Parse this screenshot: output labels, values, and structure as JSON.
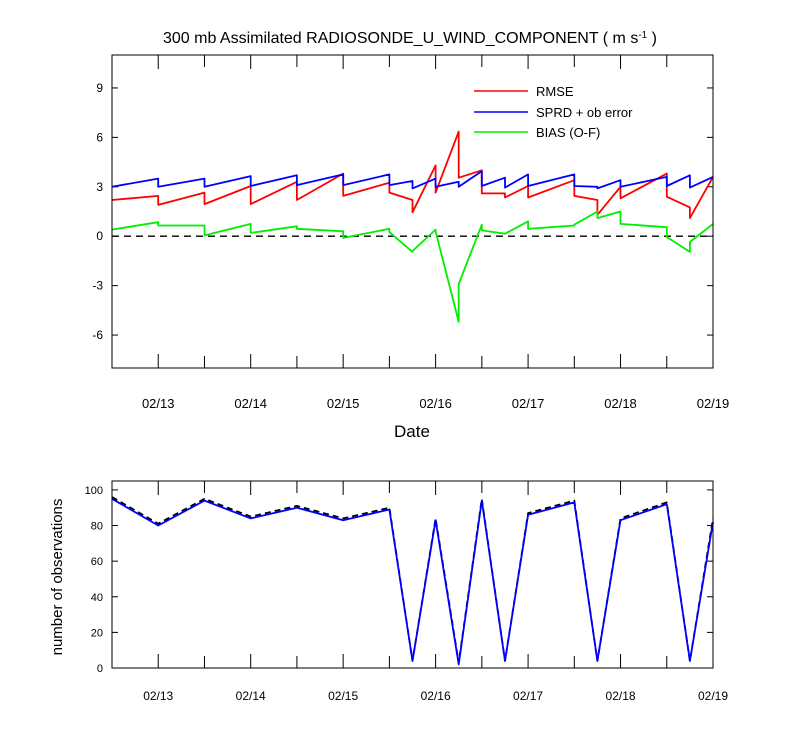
{
  "top_chart": {
    "title_main": "300 mb Assimilated RADIOSONDE_U_WIND_COMPONENT ( m s",
    "title_sup": "-1",
    "title_close": " )",
    "xlabel": "Date",
    "legend": [
      {
        "name": "RMSE",
        "color": "#ff0000"
      },
      {
        "name": "SPRD + ob error",
        "color": "#0000ff"
      },
      {
        "name": "BIAS (O-F)",
        "color": "#00ee00"
      }
    ]
  },
  "bottom_chart": {
    "ylabel": "number of observations"
  },
  "chart_data": [
    {
      "type": "line",
      "xlim": [
        12.5,
        19.0
      ],
      "ylim": [
        -8,
        11
      ],
      "x_ticks": [
        13,
        14,
        15,
        16,
        17,
        18,
        19
      ],
      "x_tick_labels": [
        "02/13",
        "02/14",
        "02/15",
        "02/16",
        "02/17",
        "02/18",
        "02/19"
      ],
      "y_ticks": [
        -6,
        -3,
        0,
        3,
        6,
        9
      ],
      "y_tick_labels": [
        "-6",
        "-3",
        "0",
        "3",
        "6",
        "9"
      ],
      "zero_line": {
        "style": "dashed",
        "color": "#000000"
      },
      "series": [
        {
          "name": "RMSE",
          "color": "#ff0000",
          "points": [
            [
              12.5,
              2.2
            ],
            [
              13.0,
              2.45
            ],
            [
              13.0,
              1.9
            ],
            [
              13.5,
              2.65
            ],
            [
              13.5,
              1.95
            ],
            [
              14.0,
              3.05
            ],
            [
              14.0,
              1.95
            ],
            [
              14.5,
              3.3
            ],
            [
              14.5,
              2.2
            ],
            [
              15.0,
              3.8
            ],
            [
              15.0,
              2.45
            ],
            [
              15.5,
              3.25
            ],
            [
              15.5,
              2.65
            ],
            [
              15.75,
              2.2
            ],
            [
              15.75,
              1.45
            ],
            [
              16.0,
              4.3
            ],
            [
              16.0,
              2.65
            ],
            [
              16.25,
              6.35
            ],
            [
              16.25,
              3.55
            ],
            [
              16.5,
              4.0
            ],
            [
              16.5,
              2.6
            ],
            [
              16.75,
              2.6
            ],
            [
              16.75,
              2.35
            ],
            [
              17.0,
              3.05
            ],
            [
              17.0,
              2.35
            ],
            [
              17.5,
              3.4
            ],
            [
              17.5,
              2.45
            ],
            [
              17.75,
              2.2
            ],
            [
              17.75,
              1.3
            ],
            [
              18.0,
              3.0
            ],
            [
              18.0,
              2.3
            ],
            [
              18.5,
              3.8
            ],
            [
              18.5,
              2.4
            ],
            [
              18.75,
              1.75
            ],
            [
              18.75,
              1.1
            ],
            [
              19.0,
              3.6
            ]
          ]
        },
        {
          "name": "SPRD + ob error",
          "color": "#0000ff",
          "points": [
            [
              12.5,
              3.0
            ],
            [
              13.0,
              3.5
            ],
            [
              13.0,
              3.0
            ],
            [
              13.5,
              3.5
            ],
            [
              13.5,
              3.0
            ],
            [
              14.0,
              3.65
            ],
            [
              14.0,
              3.05
            ],
            [
              14.5,
              3.7
            ],
            [
              14.5,
              3.1
            ],
            [
              15.0,
              3.75
            ],
            [
              15.0,
              3.1
            ],
            [
              15.5,
              3.75
            ],
            [
              15.5,
              3.1
            ],
            [
              15.75,
              3.35
            ],
            [
              15.75,
              2.9
            ],
            [
              16.0,
              3.5
            ],
            [
              16.0,
              3.0
            ],
            [
              16.25,
              3.3
            ],
            [
              16.25,
              3.0
            ],
            [
              16.5,
              3.95
            ],
            [
              16.5,
              3.05
            ],
            [
              16.75,
              3.55
            ],
            [
              16.75,
              2.95
            ],
            [
              17.0,
              3.75
            ],
            [
              17.0,
              3.05
            ],
            [
              17.5,
              3.75
            ],
            [
              17.5,
              3.05
            ],
            [
              17.75,
              3.0
            ],
            [
              17.75,
              2.9
            ],
            [
              18.0,
              3.4
            ],
            [
              18.0,
              3.0
            ],
            [
              18.5,
              3.6
            ],
            [
              18.5,
              3.05
            ],
            [
              18.75,
              3.7
            ],
            [
              18.75,
              2.95
            ],
            [
              19.0,
              3.6
            ]
          ]
        },
        {
          "name": "BIAS (O-F)",
          "color": "#00ee00",
          "points": [
            [
              12.5,
              0.4
            ],
            [
              13.0,
              0.85
            ],
            [
              13.0,
              0.65
            ],
            [
              13.5,
              0.65
            ],
            [
              13.5,
              0.05
            ],
            [
              14.0,
              0.75
            ],
            [
              14.0,
              0.2
            ],
            [
              14.5,
              0.6
            ],
            [
              14.5,
              0.45
            ],
            [
              15.0,
              0.3
            ],
            [
              15.0,
              -0.1
            ],
            [
              15.5,
              0.45
            ],
            [
              15.5,
              0.25
            ],
            [
              15.75,
              -0.95
            ],
            [
              15.75,
              -0.9
            ],
            [
              16.0,
              0.4
            ],
            [
              16.0,
              0.3
            ],
            [
              16.25,
              -5.2
            ],
            [
              16.25,
              -2.9
            ],
            [
              16.5,
              0.7
            ],
            [
              16.5,
              0.35
            ],
            [
              16.75,
              0.15
            ],
            [
              16.75,
              0.15
            ],
            [
              17.0,
              0.9
            ],
            [
              17.0,
              0.45
            ],
            [
              17.5,
              0.65
            ],
            [
              17.5,
              0.7
            ],
            [
              17.75,
              1.5
            ],
            [
              17.75,
              1.1
            ],
            [
              18.0,
              1.5
            ],
            [
              18.0,
              0.75
            ],
            [
              18.5,
              0.55
            ],
            [
              18.5,
              -0.05
            ],
            [
              18.75,
              -0.95
            ],
            [
              18.75,
              -0.35
            ],
            [
              19.0,
              0.75
            ]
          ]
        }
      ]
    },
    {
      "type": "line",
      "xlim": [
        12.5,
        19.0
      ],
      "ylim": [
        0,
        105
      ],
      "x_ticks": [
        13,
        14,
        15,
        16,
        17,
        18,
        19
      ],
      "x_tick_labels": [
        "02/13",
        "02/14",
        "02/15",
        "02/16",
        "02/17",
        "02/18",
        "02/19"
      ],
      "y_ticks": [
        0,
        20,
        40,
        60,
        80,
        100
      ],
      "y_tick_labels": [
        "0",
        "20",
        "40",
        "60",
        "80",
        "100"
      ],
      "ylabel": "number of observations",
      "series": [
        {
          "color": "#000000",
          "style": "dashed",
          "points": [
            [
              12.5,
              96
            ],
            [
              13.0,
              81
            ],
            [
              13.5,
              95
            ],
            [
              14.0,
              85
            ],
            [
              14.5,
              91
            ],
            [
              15.0,
              84
            ],
            [
              15.5,
              90
            ],
            [
              15.75,
              4
            ],
            [
              16.0,
              84
            ],
            [
              16.25,
              3
            ],
            [
              16.5,
              95
            ],
            [
              16.75,
              4
            ],
            [
              17.0,
              87
            ],
            [
              17.5,
              94
            ],
            [
              17.75,
              4
            ],
            [
              18.0,
              84
            ],
            [
              18.5,
              93
            ],
            [
              18.75,
              4
            ],
            [
              19.0,
              84
            ]
          ]
        },
        {
          "color": "#0000ff",
          "style": "solid",
          "points": [
            [
              12.5,
              95
            ],
            [
              13.0,
              80
            ],
            [
              13.5,
              94
            ],
            [
              14.0,
              84
            ],
            [
              14.5,
              90
            ],
            [
              15.0,
              83
            ],
            [
              15.5,
              89
            ],
            [
              15.75,
              4
            ],
            [
              16.0,
              83
            ],
            [
              16.25,
              2
            ],
            [
              16.5,
              94
            ],
            [
              16.75,
              4
            ],
            [
              17.0,
              86
            ],
            [
              17.5,
              93
            ],
            [
              17.75,
              4
            ],
            [
              18.0,
              83
            ],
            [
              18.5,
              92
            ],
            [
              18.75,
              4
            ],
            [
              19.0,
              82
            ]
          ]
        }
      ]
    }
  ]
}
